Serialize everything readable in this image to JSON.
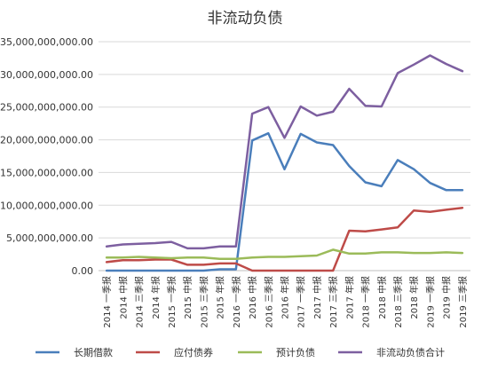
{
  "chart_data": {
    "type": "line",
    "title": "非流动负债",
    "xlabel": "",
    "ylabel": "",
    "ylim": [
      0,
      35000000000
    ],
    "yticks": [
      0,
      5000000000,
      10000000000,
      15000000000,
      20000000000,
      25000000000,
      30000000000,
      35000000000
    ],
    "ytick_labels": [
      "0.00",
      "5,000,000,000.00",
      "10,000,000,000.00",
      "15,000,000,000.00",
      "20,000,000,000.00",
      "25,000,000,000.00",
      "30,000,000,000.00",
      "35,000,000,000.00"
    ],
    "grid": true,
    "legend_position": "bottom",
    "categories": [
      "2014 一季报",
      "2014 中报",
      "2014 三季报",
      "2014 年报",
      "2015 一季报",
      "2015 中报",
      "2015 三季报",
      "2015 年报",
      "2016 一季报",
      "2016 中报",
      "2016 三季报",
      "2016 年报",
      "2017 一季报",
      "2017 中报",
      "2017 三季报",
      "2017 年报",
      "2018 一季报",
      "2018 中报",
      "2018 三季报",
      "2018 年报",
      "2019 一季报",
      "2019 中报",
      "2019 三季报"
    ],
    "series": [
      {
        "name": "长期借款",
        "color": "#4a7ebb",
        "values": [
          0,
          0,
          0,
          0,
          0,
          0,
          0,
          200000000,
          200000000,
          19900000000,
          21000000000,
          15500000000,
          20900000000,
          19600000000,
          19200000000,
          16000000000,
          13500000000,
          12900000000,
          16900000000,
          15500000000,
          13400000000,
          12300000000,
          12300000000
        ]
      },
      {
        "name": "应付债券",
        "color": "#be4b48",
        "values": [
          1300000000,
          1600000000,
          1600000000,
          1700000000,
          1700000000,
          900000000,
          900000000,
          1100000000,
          1100000000,
          0,
          0,
          0,
          0,
          0,
          0,
          6100000000,
          6000000000,
          6300000000,
          6600000000,
          9200000000,
          9000000000,
          9300000000,
          9600000000
        ]
      },
      {
        "name": "预计负债",
        "color": "#9bbb59",
        "values": [
          2000000000,
          2000000000,
          2100000000,
          2000000000,
          1900000000,
          2000000000,
          2000000000,
          1800000000,
          1800000000,
          2000000000,
          2100000000,
          2100000000,
          2200000000,
          2300000000,
          3200000000,
          2600000000,
          2600000000,
          2800000000,
          2800000000,
          2700000000,
          2700000000,
          2800000000,
          2700000000
        ]
      },
      {
        "name": "非流动负债合计",
        "color": "#7d5fa0",
        "values": [
          3700000000,
          4000000000,
          4100000000,
          4200000000,
          4400000000,
          3400000000,
          3400000000,
          3700000000,
          3700000000,
          24000000000,
          25000000000,
          20300000000,
          25100000000,
          23700000000,
          24300000000,
          27800000000,
          25200000000,
          25100000000,
          30200000000,
          31500000000,
          32900000000,
          31600000000,
          30500000000
        ]
      }
    ]
  }
}
